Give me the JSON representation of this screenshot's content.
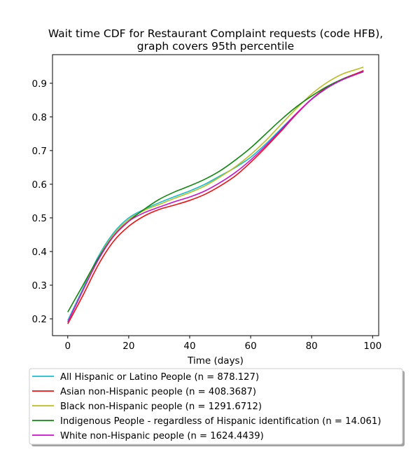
{
  "chart_data": {
    "type": "line",
    "title_line1": "Wait time CDF for Restaurant Complaint  requests (code HFB),",
    "title_line2": "graph covers 95th percentile",
    "xlabel": "Time (days)",
    "ylabel": "",
    "xlim": [
      -5,
      102
    ],
    "ylim": [
      0.15,
      0.985
    ],
    "xticks": [
      0,
      20,
      40,
      60,
      80,
      100
    ],
    "yticks": [
      0.2,
      0.3,
      0.4,
      0.5,
      0.6,
      0.7,
      0.8,
      0.9
    ],
    "grid": false,
    "legend_position": "below plot",
    "x": [
      0,
      5,
      10,
      15,
      20,
      25,
      30,
      35,
      40,
      45,
      50,
      55,
      60,
      65,
      70,
      75,
      80,
      85,
      90,
      95,
      97
    ],
    "series": [
      {
        "name": "All Hispanic or Latino People (n = 878.127)",
        "color": "#17becf",
        "values": [
          0.195,
          0.29,
          0.385,
          0.455,
          0.5,
          0.525,
          0.545,
          0.563,
          0.58,
          0.6,
          0.625,
          0.65,
          0.68,
          0.72,
          0.765,
          0.81,
          0.852,
          0.885,
          0.91,
          0.928,
          0.935
        ]
      },
      {
        "name": "Asian non-Hispanic people (n = 408.3687)",
        "color": "#ee1111",
        "values": [
          0.185,
          0.27,
          0.36,
          0.43,
          0.475,
          0.505,
          0.525,
          0.538,
          0.552,
          0.57,
          0.595,
          0.625,
          0.665,
          0.71,
          0.758,
          0.808,
          0.853,
          0.888,
          0.912,
          0.93,
          0.938
        ]
      },
      {
        "name": "Black non-Hispanic people (n = 1291.6712)",
        "color": "#bcbd22",
        "values": [
          0.19,
          0.285,
          0.38,
          0.45,
          0.495,
          0.522,
          0.54,
          0.558,
          0.575,
          0.595,
          0.622,
          0.652,
          0.688,
          0.73,
          0.778,
          0.825,
          0.868,
          0.902,
          0.927,
          0.942,
          0.948
        ]
      },
      {
        "name": "Indigenous People - regardless of Hispanic identification (n = 14.061)",
        "color": "#118811",
        "values": [
          0.22,
          0.3,
          0.38,
          0.445,
          0.49,
          0.525,
          0.555,
          0.577,
          0.595,
          0.615,
          0.64,
          0.672,
          0.708,
          0.75,
          0.792,
          0.83,
          0.862,
          0.89,
          0.912,
          0.928,
          0.934
        ]
      },
      {
        "name": "White non-Hispanic people (n = 1624.4439)",
        "color": "#cc11cc",
        "values": [
          0.19,
          0.285,
          0.375,
          0.445,
          0.49,
          0.515,
          0.532,
          0.548,
          0.562,
          0.58,
          0.605,
          0.635,
          0.672,
          0.715,
          0.762,
          0.81,
          0.853,
          0.886,
          0.91,
          0.928,
          0.936
        ]
      }
    ]
  }
}
